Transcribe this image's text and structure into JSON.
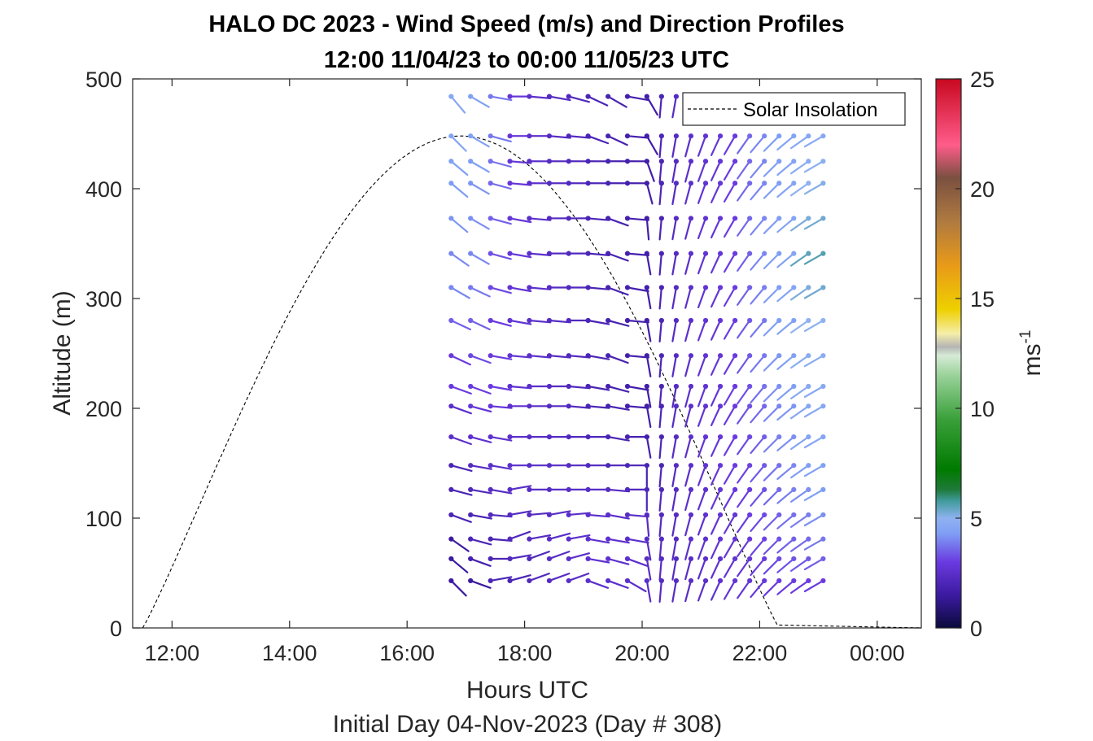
{
  "chart_data": {
    "type": "wind-barb-profile",
    "title": "HALO DC 2023 - Wind Speed (m/s) and Direction Profiles",
    "subtitle": "12:00 11/04/23 to 00:00 11/05/23  UTC",
    "xlabel": "Hours UTC",
    "xlabel2": "Initial Day 04-Nov-2023 (Day # 308)",
    "ylabel": "Altitude (m)",
    "xlim_hours": [
      11.33,
      24.75
    ],
    "ylim": [
      0,
      500
    ],
    "x_ticks": [
      {
        "hour": 12,
        "label": "12:00"
      },
      {
        "hour": 14,
        "label": "14:00"
      },
      {
        "hour": 16,
        "label": "16:00"
      },
      {
        "hour": 18,
        "label": "18:00"
      },
      {
        "hour": 20,
        "label": "20:00"
      },
      {
        "hour": 22,
        "label": "22:00"
      },
      {
        "hour": 24,
        "label": "00:00"
      }
    ],
    "y_ticks": [
      0,
      100,
      200,
      300,
      400,
      500
    ],
    "legend": {
      "label": "Solar Insolation",
      "location": "top-right",
      "style": "dashed black"
    },
    "solar_insolation": {
      "start_hour": 11.5,
      "peak_hour": 16.9,
      "end_hour": 22.33,
      "peak_altitude_equiv": 448
    },
    "colorbar": {
      "label": "ms",
      "label_exponent": "-1",
      "range": [
        0,
        25
      ],
      "ticks": [
        0,
        5,
        10,
        15,
        20,
        25
      ],
      "stops": [
        {
          "v": 0,
          "c": "#0a0a3c"
        },
        {
          "v": 1.5,
          "c": "#3c1aa0"
        },
        {
          "v": 3,
          "c": "#6a3ae0"
        },
        {
          "v": 4.3,
          "c": "#7f9ef5"
        },
        {
          "v": 5,
          "c": "#8fb2f0"
        },
        {
          "v": 5.8,
          "c": "#3f9a9a"
        },
        {
          "v": 6.3,
          "c": "#1f7a3a"
        },
        {
          "v": 7.2,
          "c": "#007a00"
        },
        {
          "v": 9.5,
          "c": "#3aa03a"
        },
        {
          "v": 11.5,
          "c": "#9ad29a"
        },
        {
          "v": 12.4,
          "c": "#d6ead6"
        },
        {
          "v": 12.8,
          "c": "#b4b4b4"
        },
        {
          "v": 13.4,
          "c": "#f5eeaa"
        },
        {
          "v": 14.5,
          "c": "#eed000"
        },
        {
          "v": 16.5,
          "c": "#e89a18"
        },
        {
          "v": 18.5,
          "c": "#b07a40"
        },
        {
          "v": 20.5,
          "c": "#7a5040"
        },
        {
          "v": 22,
          "c": "#ff5c8a"
        },
        {
          "v": 25,
          "c": "#c80820"
        }
      ]
    },
    "profile_hours": [
      16.75,
      17.08,
      17.42,
      17.75,
      18.08,
      18.42,
      18.75,
      19.08,
      19.42,
      19.75,
      20.08,
      20.33,
      20.58,
      20.83,
      21.08,
      21.33,
      21.58,
      21.83,
      22.08,
      22.33,
      22.58,
      22.83,
      23.08
    ],
    "altitudes": [
      43,
      63,
      81,
      103,
      126,
      148,
      174,
      202,
      220,
      248,
      280,
      310,
      341,
      373,
      405,
      425,
      448,
      484
    ],
    "wind_speed_by_profile": [
      [
        1.5,
        1.5,
        1.5,
        2,
        2,
        2,
        2.5,
        2.5,
        3,
        3,
        3.5,
        4,
        4,
        4.2,
        4.3,
        4.4,
        4.5,
        4.6
      ],
      [
        1.5,
        1.8,
        2,
        2,
        2.2,
        2.3,
        2.6,
        2.8,
        3,
        3.2,
        3.5,
        3.8,
        4,
        4.1,
        4.2,
        4.3,
        4.4,
        4.4
      ],
      [
        2,
        2,
        2,
        2.2,
        2.3,
        2.5,
        2.6,
        2.8,
        3,
        3,
        3,
        3.2,
        3.3,
        3.5,
        3.6,
        3.7,
        3.8,
        3.8
      ],
      [
        2,
        2.2,
        2.2,
        2.3,
        2.4,
        2.5,
        2.5,
        2.6,
        2.6,
        2.7,
        2.7,
        2.7,
        2.8,
        2.8,
        2.8,
        2.8,
        2.8,
        2.8
      ],
      [
        2.2,
        2.2,
        2.3,
        2.3,
        2.4,
        2.4,
        2.4,
        2.4,
        2.5,
        2.5,
        2.5,
        2.5,
        2.5,
        2.5,
        2.5,
        2.5,
        2.5,
        2.5
      ],
      [
        2.3,
        2.4,
        2.4,
        2.4,
        2.4,
        2.4,
        2.3,
        2.3,
        2.3,
        2.3,
        2.3,
        2.3,
        2.3,
        2.3,
        2.3,
        2.3,
        2.3,
        2.3
      ],
      [
        2.4,
        2.5,
        2.5,
        2.5,
        2.4,
        2.3,
        2.2,
        2.2,
        2.2,
        2.2,
        2.2,
        2.2,
        2.2,
        2.2,
        2.2,
        2.2,
        2.2,
        2.2
      ],
      [
        2.5,
        2.6,
        2.6,
        2.5,
        2.4,
        2.2,
        2.1,
        2,
        2,
        2,
        2,
        2,
        2,
        2,
        2,
        2,
        2,
        2
      ],
      [
        2.5,
        2.6,
        2.6,
        2.5,
        2.3,
        2.1,
        2,
        1.9,
        1.9,
        1.9,
        1.9,
        1.9,
        1.9,
        1.9,
        1.9,
        1.9,
        1.9,
        1.9
      ],
      [
        2.5,
        2.5,
        2.5,
        2.4,
        2.2,
        2,
        1.9,
        1.8,
        1.8,
        1.8,
        1.8,
        1.8,
        1.8,
        1.8,
        1.8,
        1.8,
        1.8,
        1.8
      ],
      [
        2.4,
        2.4,
        2.4,
        2.3,
        2.1,
        1.9,
        1.8,
        1.7,
        1.7,
        1.7,
        1.7,
        1.7,
        1.7,
        1.7,
        1.7,
        1.7,
        1.7,
        1.7
      ],
      [
        2.3,
        2.3,
        2.3,
        2.2,
        2.1,
        2,
        2,
        2,
        2,
        2,
        2,
        2,
        2,
        2,
        2,
        2,
        2,
        2
      ],
      [
        2.3,
        2.3,
        2.3,
        2.3,
        2.3,
        2.3,
        2.3,
        2.3,
        2.3,
        2.3,
        2.3,
        2.3,
        2.3,
        2.3,
        2.3,
        2.3,
        2.3,
        2.3
      ],
      [
        2.4,
        2.4,
        2.5,
        2.5,
        2.5,
        2.5,
        2.5,
        2.5,
        2.5,
        2.5,
        2.5,
        2.5,
        2.5,
        2.5,
        2.5,
        2.5,
        2.5,
        2.5
      ],
      [
        2.5,
        2.5,
        2.6,
        2.6,
        2.6,
        2.7,
        2.7,
        2.7,
        2.7,
        2.7,
        2.7,
        2.7,
        2.7,
        2.7,
        2.7,
        2.7,
        2.7,
        2.7
      ],
      [
        2.6,
        2.6,
        2.7,
        2.7,
        2.8,
        2.8,
        2.8,
        2.8,
        2.8,
        2.8,
        2.8,
        2.8,
        2.8,
        2.8,
        2.8,
        2.8,
        2.8,
        2.8
      ],
      [
        2.7,
        2.7,
        2.8,
        2.8,
        2.9,
        3,
        3,
        3,
        3,
        3,
        3,
        3,
        3,
        3,
        3,
        3,
        3,
        3
      ],
      [
        2.8,
        2.8,
        2.9,
        3,
        3,
        3.1,
        3.2,
        3.3,
        3.3,
        3.4,
        3.4,
        3.5,
        3.5,
        3.6,
        3.6,
        3.6,
        3.6,
        3.6
      ],
      [
        2.9,
        3,
        3.1,
        3.2,
        3.3,
        3.4,
        3.5,
        3.6,
        3.7,
        3.8,
        3.8,
        3.9,
        4,
        4,
        4,
        4,
        4,
        4
      ],
      [
        3,
        3.2,
        3.3,
        3.5,
        3.6,
        3.7,
        3.9,
        4,
        4.1,
        4.2,
        4.3,
        4.3,
        4.3,
        4.3,
        4.3,
        4.3,
        4.3,
        4.3
      ],
      [
        3,
        3.3,
        3.5,
        3.7,
        3.9,
        4,
        4.1,
        4.2,
        4.3,
        4.4,
        4.4,
        4.5,
        4.5,
        4.5,
        4.5,
        4.5,
        4.5,
        4.5
      ],
      [
        3,
        3.4,
        3.6,
        3.9,
        4.1,
        4.3,
        4.5,
        4.6,
        4.7,
        4.8,
        5,
        5.2,
        5.5,
        5.2,
        5,
        4.8,
        4.6,
        4.4
      ],
      [
        3,
        3.5,
        3.8,
        4.1,
        4.3,
        4.4,
        4.5,
        4.6,
        4.7,
        4.8,
        5,
        5.3,
        5.6,
        5.3,
        5.1,
        4.9,
        4.7,
        4.5
      ]
    ],
    "barb_direction_deg_by_profile": [
      [
        45,
        40,
        35,
        20,
        15,
        15,
        20,
        20,
        20,
        25,
        25,
        30,
        35,
        40,
        40,
        40,
        45,
        50
      ],
      [
        20,
        20,
        15,
        10,
        10,
        10,
        15,
        15,
        20,
        20,
        25,
        25,
        30,
        30,
        30,
        30,
        30,
        30
      ],
      [
        -10,
        0,
        5,
        5,
        10,
        10,
        10,
        5,
        10,
        10,
        15,
        15,
        15,
        15,
        15,
        15,
        15,
        10
      ],
      [
        -15,
        -10,
        -20,
        -10,
        -10,
        0,
        0,
        0,
        5,
        5,
        10,
        10,
        10,
        10,
        5,
        5,
        0,
        0
      ],
      [
        -20,
        -20,
        -10,
        -5,
        0,
        0,
        0,
        0,
        0,
        5,
        5,
        5,
        5,
        5,
        0,
        0,
        0,
        5
      ],
      [
        -20,
        -20,
        -15,
        -10,
        0,
        0,
        0,
        0,
        0,
        5,
        5,
        0,
        0,
        0,
        0,
        0,
        5,
        10
      ],
      [
        -20,
        -15,
        -10,
        -5,
        0,
        0,
        0,
        5,
        5,
        5,
        0,
        0,
        0,
        0,
        0,
        0,
        5,
        15
      ],
      [
        20,
        10,
        10,
        5,
        0,
        0,
        0,
        5,
        10,
        10,
        10,
        5,
        5,
        5,
        0,
        0,
        20,
        25
      ],
      [
        20,
        15,
        10,
        10,
        5,
        0,
        10,
        10,
        15,
        20,
        15,
        20,
        20,
        20,
        0,
        0,
        25,
        30
      ],
      [
        30,
        20,
        10,
        5,
        0,
        0,
        0,
        5,
        10,
        5,
        5,
        10,
        5,
        5,
        0,
        0,
        5,
        10
      ],
      [
        80,
        80,
        80,
        85,
        90,
        90,
        80,
        80,
        80,
        80,
        80,
        80,
        80,
        85,
        75,
        70,
        60,
        60
      ],
      [
        95,
        95,
        95,
        95,
        95,
        95,
        95,
        95,
        95,
        95,
        95,
        95,
        95,
        95,
        95,
        95,
        95,
        95
      ],
      [
        100,
        100,
        100,
        100,
        100,
        100,
        100,
        100,
        100,
        100,
        100,
        100,
        100,
        100,
        100,
        100,
        100,
        100
      ],
      [
        105,
        105,
        105,
        105,
        105,
        105,
        105,
        105,
        105,
        105,
        105,
        105,
        105,
        105,
        105,
        105,
        105,
        105
      ],
      [
        110,
        110,
        110,
        110,
        110,
        110,
        110,
        110,
        110,
        110,
        110,
        110,
        110,
        110,
        110,
        110,
        110,
        110
      ],
      [
        115,
        115,
        115,
        115,
        115,
        115,
        115,
        115,
        115,
        115,
        115,
        115,
        115,
        115,
        115,
        115,
        115,
        115
      ],
      [
        120,
        120,
        120,
        120,
        120,
        120,
        120,
        120,
        120,
        120,
        120,
        120,
        120,
        120,
        120,
        120,
        120,
        120
      ],
      [
        125,
        125,
        125,
        125,
        125,
        125,
        125,
        125,
        125,
        125,
        125,
        125,
        125,
        125,
        125,
        125,
        125,
        125
      ],
      [
        130,
        130,
        130,
        130,
        130,
        130,
        130,
        130,
        130,
        130,
        130,
        130,
        130,
        130,
        130,
        130,
        130,
        130
      ],
      [
        135,
        135,
        135,
        135,
        135,
        135,
        135,
        135,
        135,
        135,
        135,
        135,
        135,
        135,
        135,
        135,
        135,
        135
      ],
      [
        140,
        140,
        140,
        140,
        140,
        140,
        140,
        140,
        140,
        140,
        140,
        140,
        140,
        140,
        140,
        140,
        140,
        140
      ],
      [
        145,
        145,
        145,
        145,
        145,
        145,
        145,
        145,
        145,
        145,
        145,
        145,
        145,
        145,
        145,
        145,
        145,
        145
      ],
      [
        150,
        150,
        150,
        150,
        150,
        150,
        150,
        150,
        150,
        150,
        150,
        150,
        150,
        150,
        150,
        150,
        150,
        150
      ]
    ]
  }
}
